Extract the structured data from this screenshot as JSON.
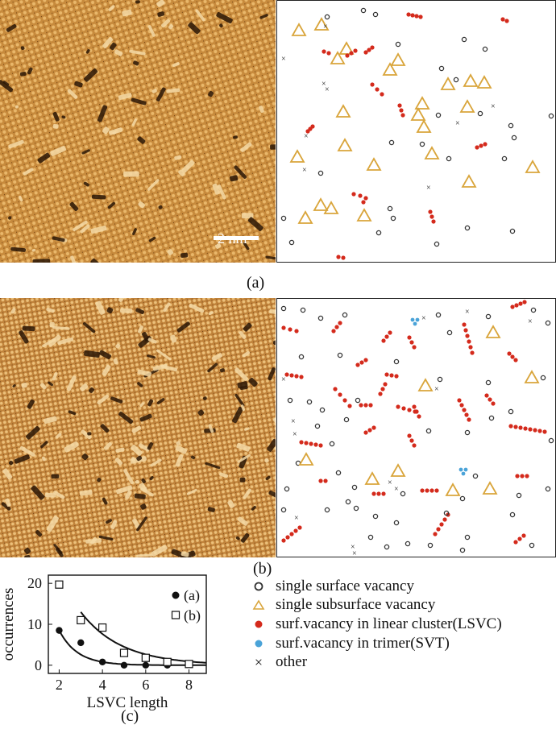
{
  "colors": {
    "stm_base": "#c78a3c",
    "stm_light": "#f4d9a6",
    "stm_dark": "#2a1606",
    "single_surface": "#333333",
    "subsurface": "#d9a53b",
    "lsvc": "#d42a1c",
    "svt": "#4aa3d8",
    "other": "#222222"
  },
  "scale_bar": {
    "label": "2 nm"
  },
  "panel_labels": {
    "a": "(a)",
    "b": "(b)",
    "c": "(c)"
  },
  "legend": [
    {
      "icon": "open-circle-icon",
      "label": "single surface vacancy"
    },
    {
      "icon": "triangle-icon",
      "label": "single subsurface vacancy"
    },
    {
      "icon": "red-dot-icon",
      "label": "surf.vacancy in linear cluster(LSVC)"
    },
    {
      "icon": "blue-dot-icon",
      "label": "surf.vacancy in trimer(SVT)"
    },
    {
      "icon": "cross-icon",
      "label": "other"
    }
  ],
  "chart_data": {
    "type": "scatter",
    "title": "",
    "xlabel": "LSVC length",
    "ylabel": "occurrences",
    "xlim": [
      1.5,
      8.8
    ],
    "ylim": [
      -2,
      22
    ],
    "xticks": [
      2,
      4,
      6,
      8
    ],
    "yticks": [
      0,
      10,
      20
    ],
    "legend_position": "top-right",
    "series": [
      {
        "name": "(a)",
        "marker": "filled-circle",
        "x": [
          2,
          3,
          4,
          5,
          6,
          7
        ],
        "y": [
          8.5,
          5.5,
          0.8,
          0,
          0,
          0
        ],
        "fit": "exponential"
      },
      {
        "name": "(b)",
        "marker": "open-square",
        "x": [
          2,
          3,
          4,
          5,
          6,
          7,
          8
        ],
        "y": [
          19.7,
          11,
          9.2,
          3,
          1.8,
          0.8,
          0.3
        ],
        "fit": "exponential"
      }
    ]
  }
}
